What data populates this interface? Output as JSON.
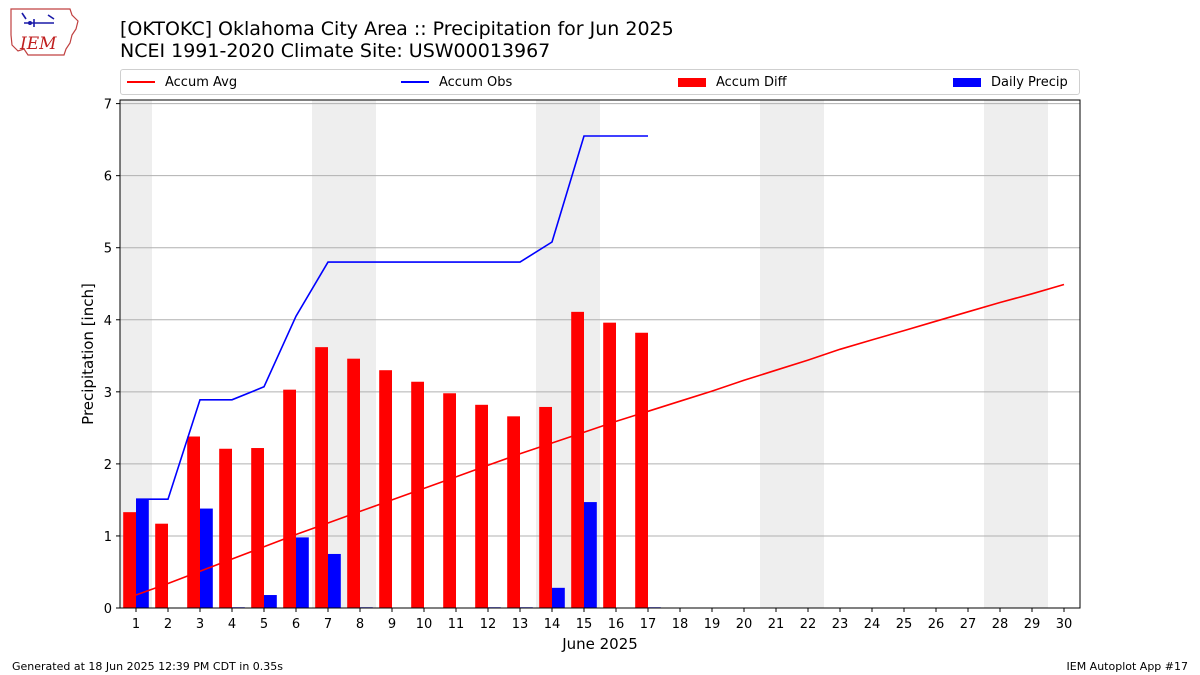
{
  "header": {
    "title_line1": "[OKTOKC] Oklahoma City Area :: Precipitation for Jun 2025",
    "title_line2": "NCEI 1991-2020 Climate Site: USW00013967",
    "logo_text": "IEM"
  },
  "legend": {
    "accum_avg": "Accum Avg",
    "accum_obs": "Accum Obs",
    "accum_diff": "Accum Diff",
    "daily_precip": "Daily Precip"
  },
  "footer": {
    "left": "Generated at 18 Jun 2025 12:39 PM CDT in 0.35s",
    "right": "IEM Autoplot App #17"
  },
  "colors": {
    "accum_avg": "#ff0000",
    "accum_obs": "#0000ff",
    "accum_diff": "#ff0000",
    "daily_precip": "#0000ff",
    "weekend_shade": "#eeeeee",
    "grid": "#b0b0b0"
  },
  "chart_data": {
    "type": "bar",
    "xlabel": "June 2025",
    "ylabel": "Precipitation [inch]",
    "x": [
      1,
      2,
      3,
      4,
      5,
      6,
      7,
      8,
      9,
      10,
      11,
      12,
      13,
      14,
      15,
      16,
      17,
      18,
      19,
      20,
      21,
      22,
      23,
      24,
      25,
      26,
      27,
      28,
      29,
      30
    ],
    "xlim": [
      0.5,
      30.5
    ],
    "ylim": [
      0,
      7.05
    ],
    "yticks": [
      0,
      1,
      2,
      3,
      4,
      5,
      6,
      7
    ],
    "grid": "horizontal",
    "legend_position": "top",
    "weekend_days": [
      1,
      7,
      8,
      14,
      15,
      21,
      22,
      28,
      29
    ],
    "series": [
      {
        "name": "Accum Avg",
        "type": "line",
        "x": [
          1,
          2,
          3,
          4,
          5,
          6,
          7,
          8,
          9,
          10,
          11,
          12,
          13,
          14,
          15,
          16,
          17,
          18,
          19,
          20,
          21,
          22,
          23,
          24,
          25,
          26,
          27,
          28,
          29,
          30
        ],
        "values": [
          0.18,
          0.34,
          0.51,
          0.68,
          0.85,
          1.02,
          1.18,
          1.34,
          1.5,
          1.66,
          1.82,
          1.98,
          2.14,
          2.29,
          2.44,
          2.59,
          2.73,
          2.87,
          3.01,
          3.16,
          3.3,
          3.44,
          3.59,
          3.72,
          3.85,
          3.98,
          4.11,
          4.24,
          4.36,
          4.49
        ]
      },
      {
        "name": "Accum Obs",
        "type": "line",
        "x": [
          1,
          2,
          3,
          4,
          5,
          6,
          7,
          8,
          9,
          10,
          11,
          12,
          13,
          14,
          15,
          16,
          17
        ],
        "values": [
          1.51,
          1.51,
          2.89,
          2.89,
          3.07,
          4.05,
          4.8,
          4.8,
          4.8,
          4.8,
          4.8,
          4.8,
          4.8,
          5.08,
          6.55,
          6.55,
          6.55
        ]
      },
      {
        "name": "Accum Diff",
        "type": "bar",
        "x": [
          1,
          2,
          3,
          4,
          5,
          6,
          7,
          8,
          9,
          10,
          11,
          12,
          13,
          14,
          15,
          16,
          17
        ],
        "values": [
          1.33,
          1.17,
          2.38,
          2.21,
          2.22,
          3.03,
          3.62,
          3.46,
          3.3,
          3.14,
          2.98,
          2.82,
          2.66,
          2.79,
          4.11,
          3.96,
          3.82
        ]
      },
      {
        "name": "Daily Precip",
        "type": "bar",
        "x": [
          1,
          2,
          3,
          4,
          5,
          6,
          7,
          8,
          9,
          10,
          11,
          12,
          13,
          14,
          15,
          16,
          17
        ],
        "values": [
          1.51,
          0,
          1.38,
          0.01,
          0.18,
          0.98,
          0.75,
          0.01,
          0,
          0,
          0,
          0.01,
          0.01,
          0.28,
          1.47,
          0,
          0.01
        ]
      }
    ]
  }
}
